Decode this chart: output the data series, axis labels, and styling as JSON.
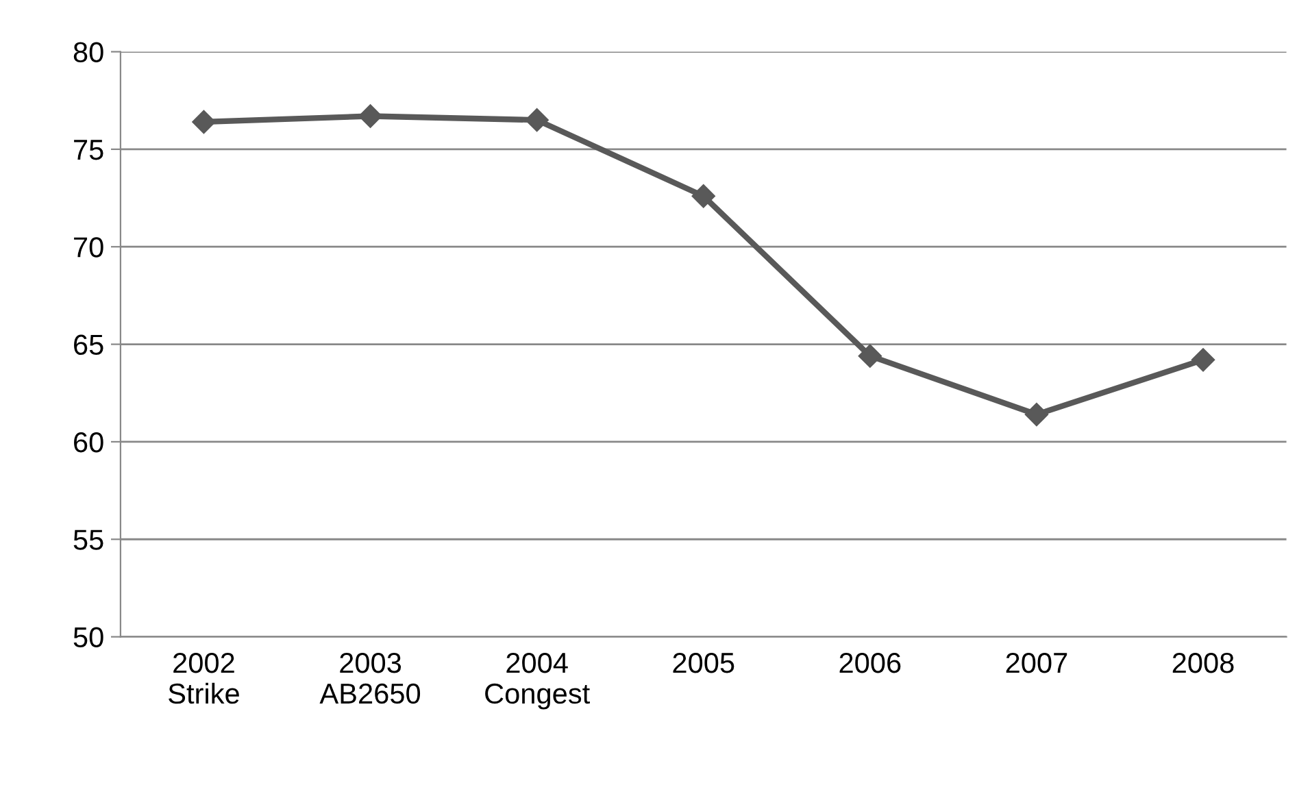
{
  "chart_data": {
    "type": "line",
    "categories": [
      "2002\nStrike",
      "2003\nAB2650",
      "2004\nCongest",
      "2005",
      "2006",
      "2007",
      "2008"
    ],
    "series": [
      {
        "color": "#595959",
        "values": [
          76.4,
          76.7,
          76.5,
          72.6,
          64.4,
          61.4,
          64.2
        ]
      }
    ],
    "ylim": [
      50,
      80
    ],
    "yticks": [
      50,
      55,
      60,
      65,
      70,
      75,
      80
    ],
    "grid": "y",
    "marker": "diamond",
    "line_style": "solid",
    "legend": false
  }
}
